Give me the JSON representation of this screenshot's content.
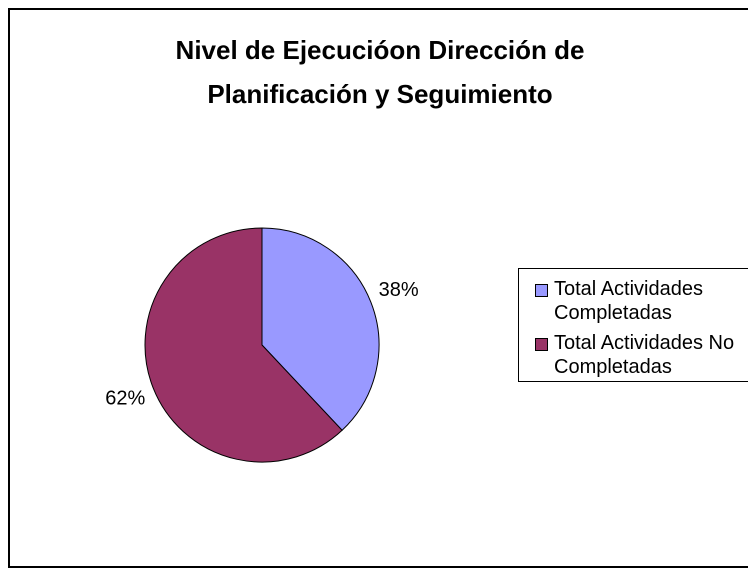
{
  "chart_data": {
    "type": "pie",
    "title": "Nivel de Ejecucióon Dirección de Planificación y Seguimiento",
    "categories": [
      "Total Actividades Completadas",
      "Total Actividades No Completadas"
    ],
    "values": [
      38,
      62
    ],
    "value_labels": [
      "38%",
      "62%"
    ],
    "colors": [
      "#9999ff",
      "#993366"
    ]
  }
}
